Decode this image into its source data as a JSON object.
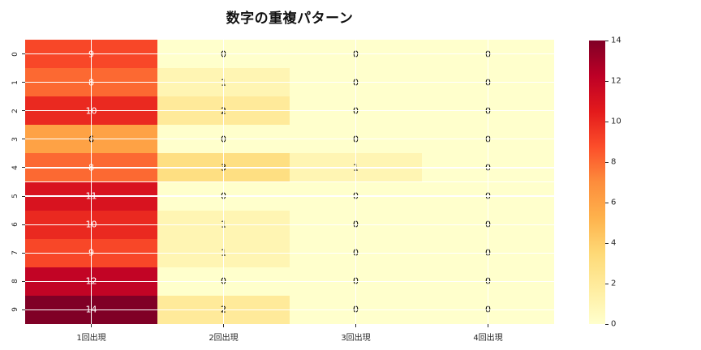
{
  "title": "数字の重複パターン",
  "chart_data": {
    "type": "heatmap",
    "title": "数字の重複パターン",
    "categories": [
      "1回出現",
      "2回出現",
      "3回出現",
      "4回出現"
    ],
    "row_labels": [
      "0",
      "1",
      "2",
      "3",
      "4",
      "5",
      "6",
      "7",
      "8",
      "9"
    ],
    "values": [
      [
        9,
        0,
        0,
        0
      ],
      [
        8,
        1,
        0,
        0
      ],
      [
        10,
        2,
        0,
        0
      ],
      [
        6,
        0,
        0,
        0
      ],
      [
        8,
        3,
        1,
        0
      ],
      [
        11,
        0,
        0,
        0
      ],
      [
        10,
        1,
        0,
        0
      ],
      [
        9,
        1,
        0,
        0
      ],
      [
        12,
        0,
        0,
        0
      ],
      [
        14,
        2,
        0,
        0
      ]
    ],
    "vmin": 0,
    "vmax": 14,
    "colormap": "YlOrRd",
    "colorbar_ticks": [
      0,
      2,
      4,
      6,
      8,
      10,
      12,
      14
    ],
    "colorbar_position": "right",
    "grid": true,
    "annotated": true
  },
  "colors": {
    "background": "#ffffff",
    "grid_line": "#ffffff",
    "tick_text": "#262626",
    "annotation_dark_cells": "#ffffff",
    "annotation_light_cells": "#000000",
    "white_text_min_value": 8,
    "value_colors": {
      "0": "#ffffcc",
      "1": "#fff5b3",
      "2": "#ffea9a",
      "3": "#fedf82",
      "6": "#fea245",
      "8": "#fc6932",
      "9": "#f84728",
      "10": "#ea2920",
      "11": "#d8131f",
      "12": "#c20425",
      "14": "#800026"
    },
    "colorbar_stops": [
      {
        "v": 0,
        "color": "#ffffcc"
      },
      {
        "v": 1.75,
        "color": "#ffeda0"
      },
      {
        "v": 3.5,
        "color": "#fed976"
      },
      {
        "v": 5.25,
        "color": "#feb24c"
      },
      {
        "v": 7,
        "color": "#fd8d3c"
      },
      {
        "v": 8.75,
        "color": "#fc4e2a"
      },
      {
        "v": 10.5,
        "color": "#e31a1c"
      },
      {
        "v": 12.25,
        "color": "#bd0026"
      },
      {
        "v": 14,
        "color": "#800026"
      }
    ]
  }
}
